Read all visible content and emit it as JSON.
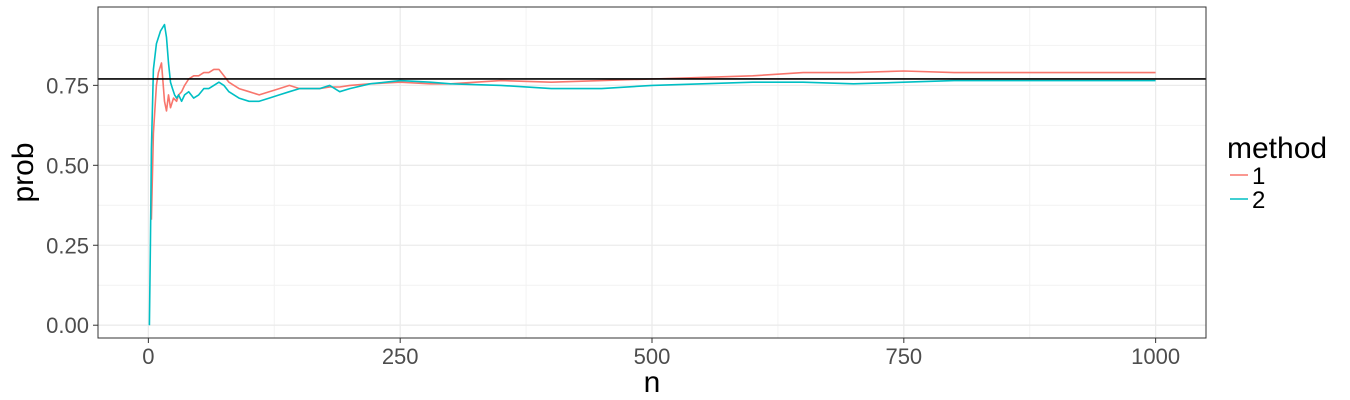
{
  "chart_data": {
    "type": "line",
    "xlabel": "n",
    "ylabel": "prob",
    "xlim": [
      -50,
      1050
    ],
    "ylim": [
      -0.04,
      0.995
    ],
    "x_ticks": [
      0,
      250,
      500,
      750,
      1000
    ],
    "x_tick_labels": [
      "0",
      "250",
      "500",
      "750",
      "1000"
    ],
    "y_ticks": [
      0.0,
      0.25,
      0.5,
      0.75
    ],
    "y_tick_labels": [
      "0.00",
      "0.25",
      "0.50",
      "0.75"
    ],
    "grid": true,
    "reference_line": {
      "y": 0.77,
      "color": "#000000"
    },
    "legend": {
      "title": "method",
      "position": "right",
      "entries": [
        {
          "label": "1",
          "color": "#F8766D"
        },
        {
          "label": "2",
          "color": "#00BFC4"
        }
      ]
    },
    "series": [
      {
        "name": "1",
        "color": "#F8766D",
        "x": [
          3,
          5,
          8,
          10,
          13,
          16,
          18,
          20,
          22,
          25,
          28,
          30,
          33,
          36,
          40,
          45,
          50,
          55,
          60,
          65,
          70,
          75,
          80,
          85,
          90,
          100,
          110,
          120,
          130,
          140,
          150,
          160,
          170,
          180,
          190,
          200,
          220,
          250,
          280,
          300,
          350,
          400,
          450,
          500,
          550,
          600,
          650,
          700,
          750,
          800,
          850,
          900,
          950,
          1000
        ],
        "y": [
          0.33,
          0.6,
          0.75,
          0.79,
          0.82,
          0.7,
          0.67,
          0.72,
          0.68,
          0.71,
          0.7,
          0.72,
          0.73,
          0.75,
          0.77,
          0.78,
          0.78,
          0.79,
          0.79,
          0.8,
          0.8,
          0.78,
          0.76,
          0.75,
          0.74,
          0.73,
          0.72,
          0.73,
          0.74,
          0.75,
          0.74,
          0.74,
          0.74,
          0.745,
          0.745,
          0.75,
          0.755,
          0.76,
          0.755,
          0.755,
          0.765,
          0.76,
          0.765,
          0.77,
          0.775,
          0.78,
          0.79,
          0.79,
          0.795,
          0.79,
          0.79,
          0.79,
          0.79,
          0.79
        ]
      },
      {
        "name": "2",
        "color": "#00BFC4",
        "x": [
          1,
          2,
          3,
          5,
          8,
          12,
          16,
          18,
          20,
          22,
          24,
          26,
          28,
          30,
          33,
          36,
          40,
          45,
          50,
          55,
          60,
          65,
          70,
          75,
          80,
          90,
          100,
          110,
          120,
          130,
          140,
          150,
          160,
          170,
          180,
          190,
          200,
          220,
          250,
          280,
          300,
          350,
          400,
          450,
          500,
          550,
          600,
          650,
          700,
          750,
          800,
          850,
          900,
          950,
          1000
        ],
        "y": [
          0.0,
          0.25,
          0.55,
          0.8,
          0.88,
          0.92,
          0.94,
          0.9,
          0.82,
          0.76,
          0.74,
          0.72,
          0.71,
          0.72,
          0.7,
          0.72,
          0.73,
          0.71,
          0.72,
          0.74,
          0.74,
          0.75,
          0.76,
          0.75,
          0.73,
          0.71,
          0.7,
          0.7,
          0.71,
          0.72,
          0.73,
          0.74,
          0.74,
          0.74,
          0.75,
          0.73,
          0.74,
          0.755,
          0.765,
          0.76,
          0.755,
          0.75,
          0.74,
          0.74,
          0.75,
          0.755,
          0.76,
          0.76,
          0.755,
          0.76,
          0.765,
          0.765,
          0.765,
          0.765,
          0.765
        ]
      }
    ]
  }
}
